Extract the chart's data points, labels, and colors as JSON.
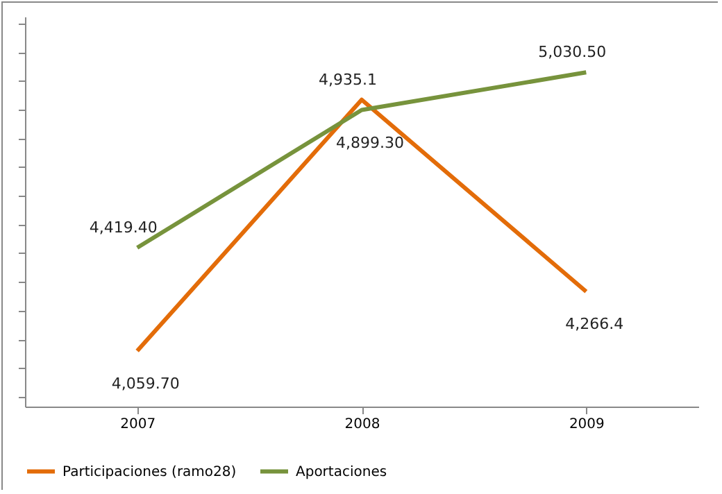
{
  "chart_data": {
    "type": "line",
    "categories": [
      "2007",
      "2008",
      "2009"
    ],
    "series": [
      {
        "name": "Participaciones (ramo28)",
        "color": "#e36c09",
        "values": [
          4059.7,
          4935.1,
          4266.4
        ],
        "value_labels": [
          "4,059.70",
          "4,935.1",
          "4,266.4"
        ]
      },
      {
        "name": "Aportaciones",
        "color": "#77933c",
        "values": [
          4419.4,
          4899.3,
          5030.5
        ],
        "value_labels": [
          "4,419.40",
          "4,899.30",
          "5,030.50"
        ]
      }
    ],
    "legend": "bottom",
    "tick_labels": "x",
    "grid": false,
    "marker": "none",
    "line_style": "solid"
  }
}
